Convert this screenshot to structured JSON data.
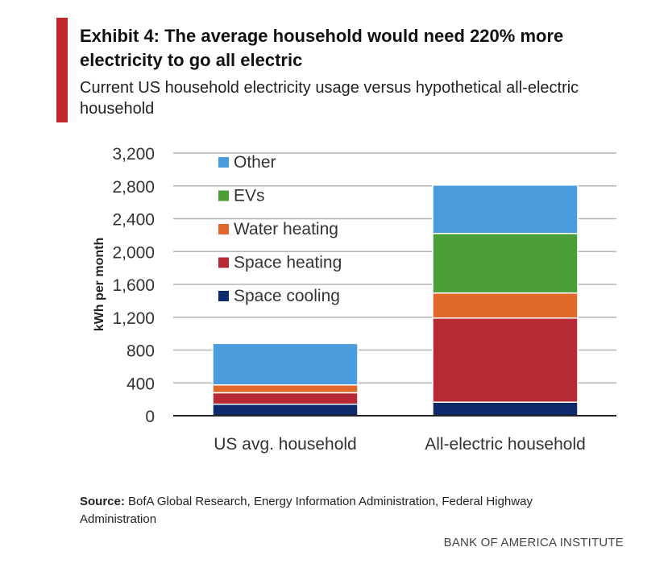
{
  "header": {
    "title": "Exhibit 4: The average household would need 220% more electricity to go all electric",
    "subtitle": "Current US household electricity usage versus hypothetical all-electric household"
  },
  "chart_data": {
    "type": "bar",
    "stacked": true,
    "categories": [
      "US avg. household",
      "All-electric household"
    ],
    "ylabel": "kWh per month",
    "xlabel": "",
    "ylim": [
      0,
      3200
    ],
    "yticks": [
      0,
      400,
      800,
      1200,
      1600,
      2000,
      2400,
      2800,
      3200
    ],
    "ytick_labels": [
      "0",
      "400",
      "800",
      "1,200",
      "1,600",
      "2,000",
      "2,400",
      "2,800",
      "3,200"
    ],
    "grid": true,
    "legend_position": "top-left",
    "series": [
      {
        "name": "Space cooling",
        "color": "#0d2b6b",
        "values": [
          140,
          165
        ]
      },
      {
        "name": "Space heating",
        "color": "#b52a35",
        "values": [
          140,
          1025
        ]
      },
      {
        "name": "Water heating",
        "color": "#e0682b",
        "values": [
          95,
          305
        ]
      },
      {
        "name": "EVs",
        "color": "#4a9e35",
        "values": [
          0,
          725
        ]
      },
      {
        "name": "Other",
        "color": "#4a9cdc",
        "values": [
          505,
          590
        ]
      }
    ]
  },
  "footer": {
    "source_label": "Source:",
    "source_text": "BofA Global Research, Energy Information Administration, Federal Highway Administration",
    "brand": "BANK OF AMERICA INSTITUTE"
  },
  "colors": {
    "accent": "#c0272d",
    "grid": "#b3b3b3"
  }
}
